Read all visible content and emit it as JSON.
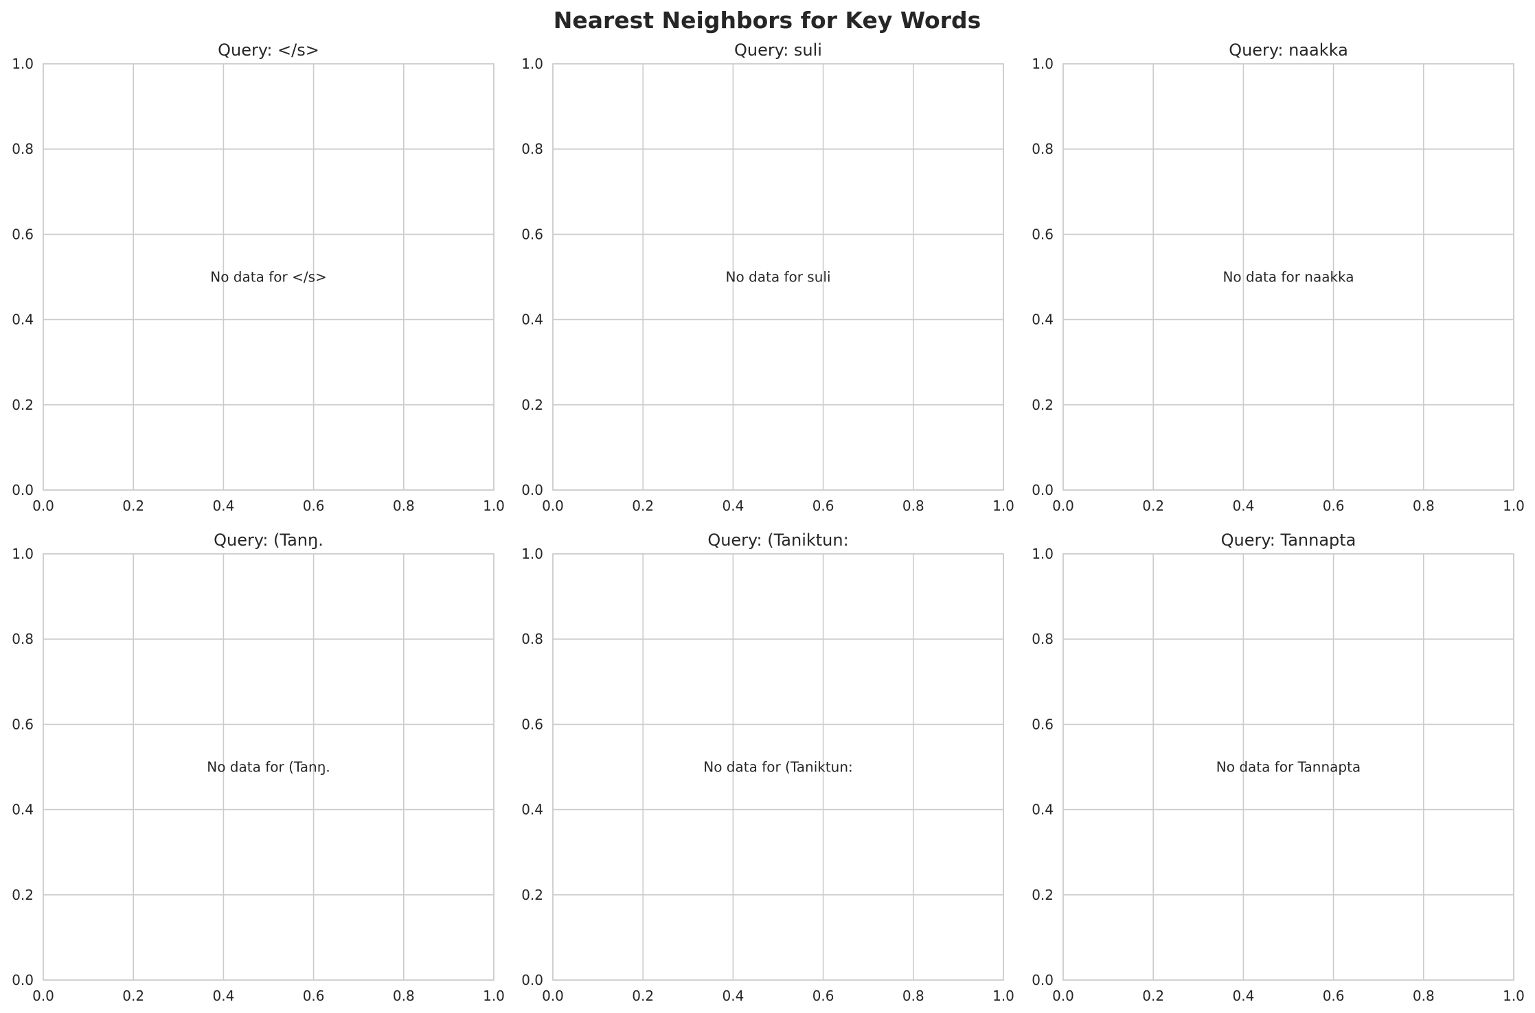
{
  "figure": {
    "title": "Nearest Neighbors for Key Words"
  },
  "chart_data": [
    {
      "type": "scatter",
      "title": "Query: </s>",
      "annotation": "No data for </s>",
      "xlim": [
        0,
        1
      ],
      "ylim": [
        0,
        1
      ],
      "xticks": [
        "0.0",
        "0.2",
        "0.4",
        "0.6",
        "0.8",
        "1.0"
      ],
      "yticks": [
        "0.0",
        "0.2",
        "0.4",
        "0.6",
        "0.8",
        "1.0"
      ],
      "grid": true,
      "series": []
    },
    {
      "type": "scatter",
      "title": "Query: suli",
      "annotation": "No data for suli",
      "xlim": [
        0,
        1
      ],
      "ylim": [
        0,
        1
      ],
      "xticks": [
        "0.0",
        "0.2",
        "0.4",
        "0.6",
        "0.8",
        "1.0"
      ],
      "yticks": [
        "0.0",
        "0.2",
        "0.4",
        "0.6",
        "0.8",
        "1.0"
      ],
      "grid": true,
      "series": []
    },
    {
      "type": "scatter",
      "title": "Query: naakka",
      "annotation": "No data for naakka",
      "xlim": [
        0,
        1
      ],
      "ylim": [
        0,
        1
      ],
      "xticks": [
        "0.0",
        "0.2",
        "0.4",
        "0.6",
        "0.8",
        "1.0"
      ],
      "yticks": [
        "0.0",
        "0.2",
        "0.4",
        "0.6",
        "0.8",
        "1.0"
      ],
      "grid": true,
      "series": []
    },
    {
      "type": "scatter",
      "title": "Query: (Tanŋ.",
      "annotation": "No data for (Tanŋ.",
      "xlim": [
        0,
        1
      ],
      "ylim": [
        0,
        1
      ],
      "xticks": [
        "0.0",
        "0.2",
        "0.4",
        "0.6",
        "0.8",
        "1.0"
      ],
      "yticks": [
        "0.0",
        "0.2",
        "0.4",
        "0.6",
        "0.8",
        "1.0"
      ],
      "grid": true,
      "series": []
    },
    {
      "type": "scatter",
      "title": "Query: (Taniktun:",
      "annotation": "No data for (Taniktun:",
      "xlim": [
        0,
        1
      ],
      "ylim": [
        0,
        1
      ],
      "xticks": [
        "0.0",
        "0.2",
        "0.4",
        "0.6",
        "0.8",
        "1.0"
      ],
      "yticks": [
        "0.0",
        "0.2",
        "0.4",
        "0.6",
        "0.8",
        "1.0"
      ],
      "grid": true,
      "series": []
    },
    {
      "type": "scatter",
      "title": "Query: Tannapta",
      "annotation": "No data for Tannapta",
      "xlim": [
        0,
        1
      ],
      "ylim": [
        0,
        1
      ],
      "xticks": [
        "0.0",
        "0.2",
        "0.4",
        "0.6",
        "0.8",
        "1.0"
      ],
      "yticks": [
        "0.0",
        "0.2",
        "0.4",
        "0.6",
        "0.8",
        "1.0"
      ],
      "grid": true,
      "series": []
    }
  ]
}
